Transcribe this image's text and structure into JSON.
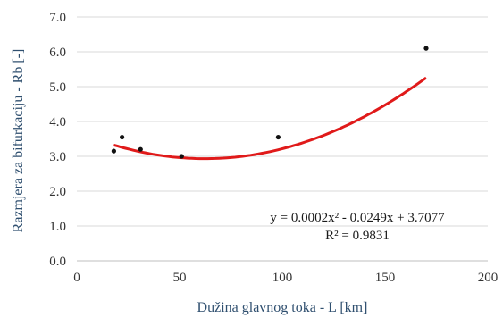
{
  "chart_data": {
    "type": "scatter",
    "xlabel": "Dužina glavnog toka - L [km]",
    "ylabel": "Razmjera za bifurkaciju - Rb [-]",
    "xlim": [
      0,
      200
    ],
    "ylim": [
      0,
      7
    ],
    "x_ticks": [
      "0",
      "50",
      "100",
      "150",
      "200"
    ],
    "y_ticks": [
      "0.0",
      "1.0",
      "2.0",
      "3.0",
      "4.0",
      "5.0",
      "6.0",
      "7.0"
    ],
    "grid": "horizontal",
    "points": [
      {
        "x": 18,
        "y": 3.15
      },
      {
        "x": 22,
        "y": 3.55
      },
      {
        "x": 31,
        "y": 3.2
      },
      {
        "x": 51,
        "y": 3.0
      },
      {
        "x": 98,
        "y": 3.55
      },
      {
        "x": 170,
        "y": 6.1
      }
    ],
    "trendline": {
      "type": "polynomial",
      "coefficients": [
        0.0002,
        -0.0249,
        3.7077
      ],
      "x_range": [
        18,
        170
      ],
      "equation": "y = 0.0002x² - 0.0249x + 3.7077",
      "r_squared": "R² = 0.9831"
    },
    "colors": {
      "points": "#111111",
      "trendline": "#e01a1a",
      "grid": "#d9d9d9"
    }
  }
}
